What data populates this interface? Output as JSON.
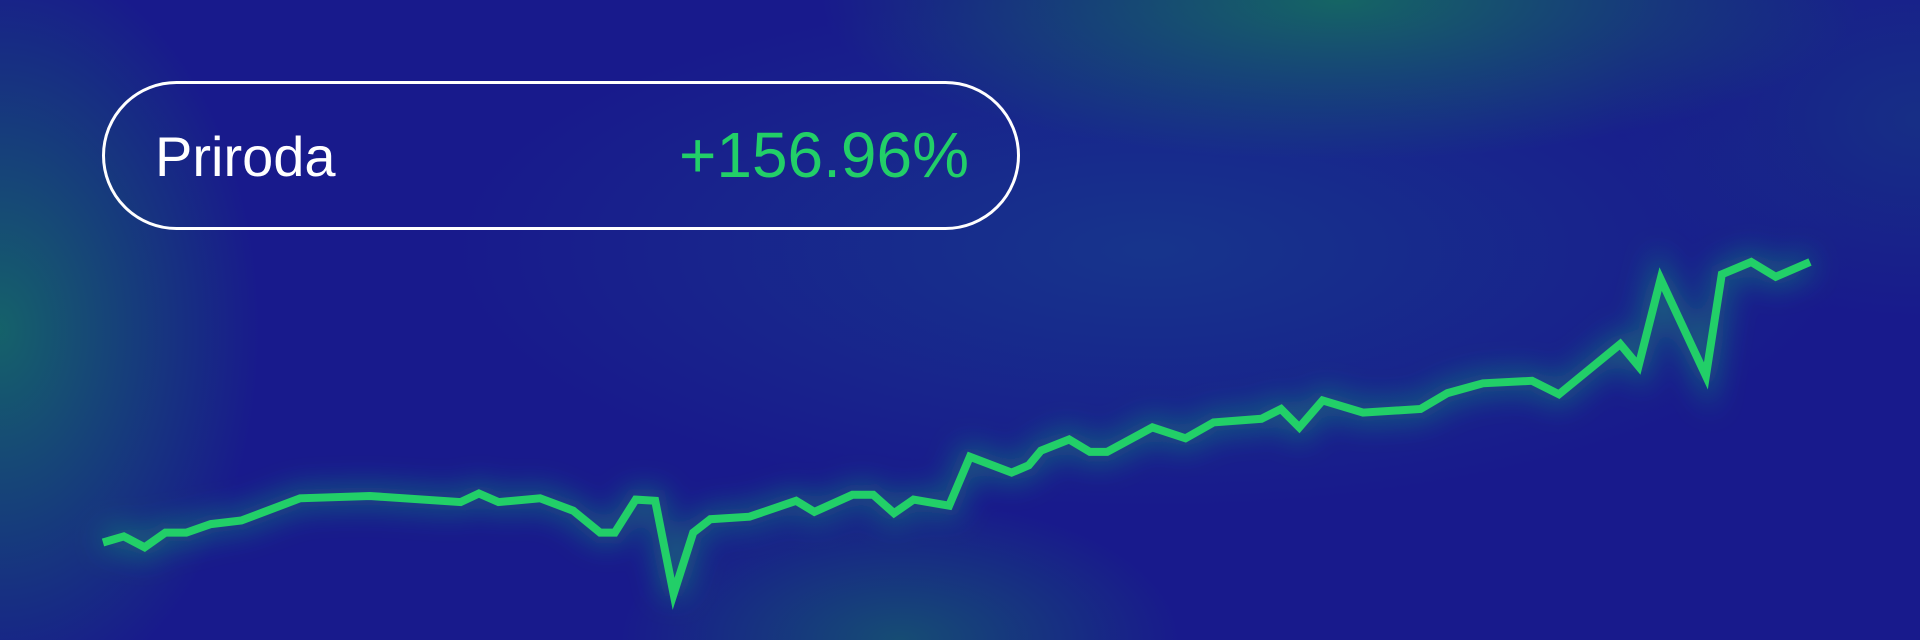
{
  "label": "Priroda",
  "change": "+156.96%",
  "colors": {
    "background": "#181a8c",
    "line": "#22cf68",
    "text": "#ffffff",
    "positive": "#22cf68"
  },
  "chart_data": {
    "type": "line",
    "title": "",
    "xlabel": "",
    "ylabel": "",
    "grid": false,
    "x": [
      0,
      17,
      34,
      51,
      68,
      88,
      113,
      161,
      218,
      292,
      307,
      323,
      357,
      384,
      406,
      418,
      435,
      451,
      466,
      482,
      496,
      528,
      566,
      581,
      612,
      629,
      646,
      662,
      691,
      708,
      742,
      756,
      766,
      789,
      806,
      820,
      857,
      884,
      907,
      946,
      962,
      977,
      996,
      1029,
      1076,
      1098,
      1127,
      1167,
      1189,
      1239,
      1254,
      1272,
      1309,
      1322,
      1346,
      1366,
      1394
    ],
    "values": [
      0,
      3.4,
      -2.7,
      5.5,
      5.5,
      10.3,
      12.3,
      24.7,
      26.0,
      22.6,
      27.4,
      22.6,
      24.7,
      17.8,
      5.5,
      5.5,
      24.0,
      23.3,
      -28.8,
      5.5,
      13.0,
      14.4,
      23.3,
      17.1,
      26.7,
      26.7,
      16.4,
      24.0,
      20.6,
      48.0,
      39.1,
      43.2,
      51.4,
      57.6,
      50.7,
      50.7,
      64.4,
      58.3,
      67.2,
      69.2,
      74.7,
      64.4,
      79.5,
      72.7,
      74.7,
      83.6,
      89.1,
      90.5,
      82.9,
      111.0,
      98.7,
      147.4,
      93.2,
      150.1,
      157.0,
      148.7,
      156.96
    ]
  }
}
